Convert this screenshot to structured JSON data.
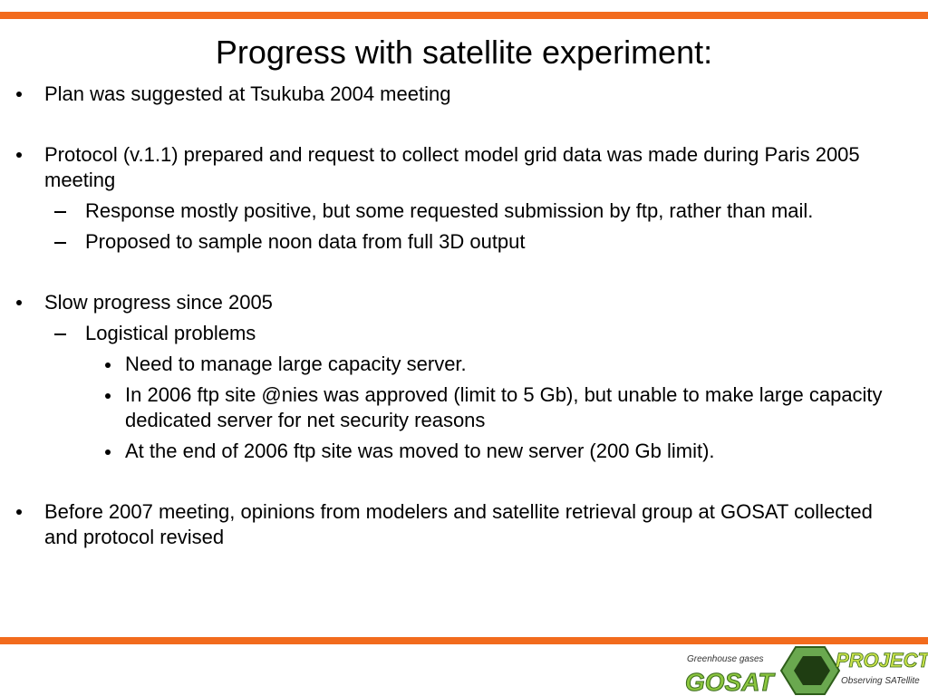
{
  "title": "Progress with satellite experiment:",
  "items": [
    {
      "level": 0,
      "text": "Plan was suggested at Tsukuba 2004 meeting"
    },
    {
      "level": 0,
      "text": "Protocol (v.1.1) prepared and request to collect model grid data was made during Paris 2005 meeting"
    },
    {
      "level": 1,
      "text": "Response mostly positive, but some requested submission by ftp, rather than mail."
    },
    {
      "level": 1,
      "text": "Proposed to sample noon data from full 3D output"
    },
    {
      "level": 0,
      "text": "Slow progress since 2005"
    },
    {
      "level": 1,
      "text": "Logistical problems"
    },
    {
      "level": 2,
      "text": "Need to manage large capacity server."
    },
    {
      "level": 2,
      "text": "In 2006 ftp site @nies was approved (limit to 5 Gb), but unable to make large capacity dedicated server for net security reasons"
    },
    {
      "level": 2,
      "text": "At the end of 2006 ftp site was moved to new server (200 Gb limit)."
    },
    {
      "level": 0,
      "text": "Before 2007 meeting, opinions from modelers and satellite retrieval group at GOSAT collected and protocol revised"
    }
  ],
  "logo": {
    "tagline": "Greenhouse gases",
    "name": "GOSAT",
    "project": "PROJECT",
    "subtitle": "Observing SATellite"
  }
}
